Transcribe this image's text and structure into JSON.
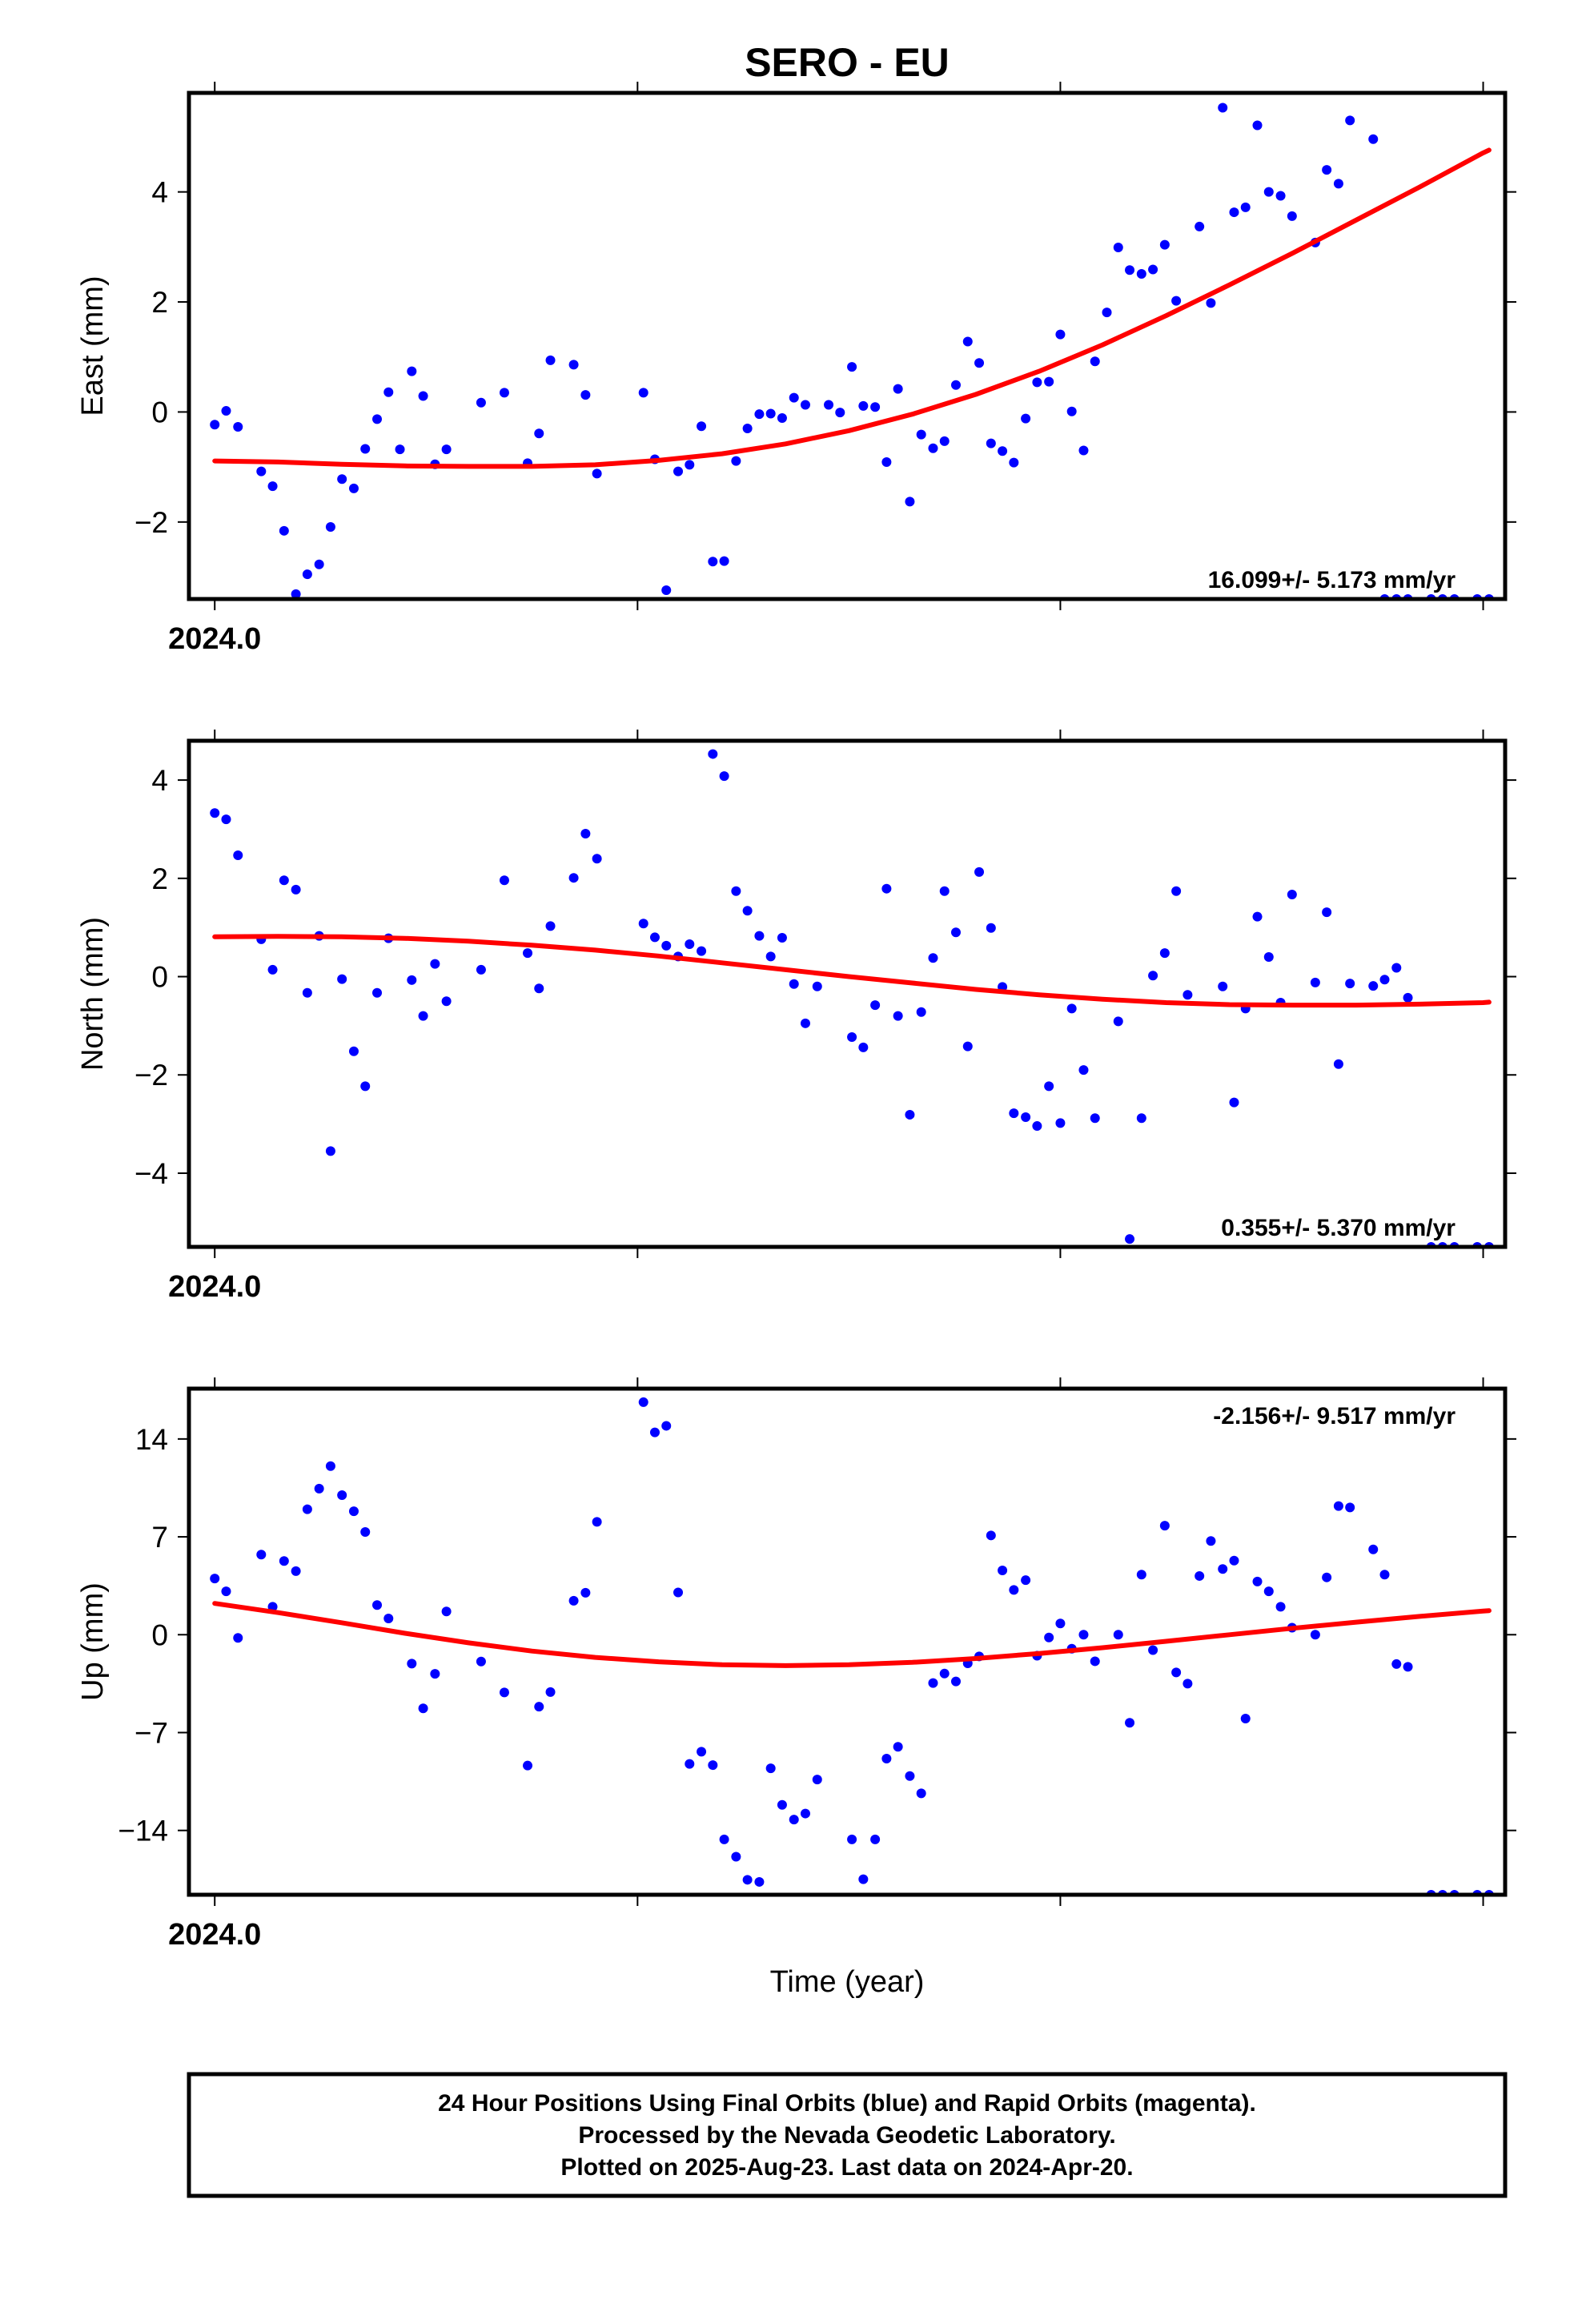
{
  "title": "SERO - EU",
  "xlabel": "Time (year)",
  "year_label": "2024.0",
  "footer": {
    "line1": "24 Hour Positions Using Final Orbits (blue) and Rapid Orbits (magenta).",
    "line2": "Processed by the Nevada Geodetic Laboratory.",
    "line3": "Plotted on 2025-Aug-23. Last data on 2024-Apr-20."
  },
  "colors": {
    "points": "#0000ff",
    "fit": "#ff0000",
    "frame": "#000000"
  },
  "chart_data": [
    {
      "type": "scatter",
      "ylabel": "East (mm)",
      "rate_text": "16.099+/- 5.173 mm/yr",
      "rate_position": "bottom-right",
      "ylim": [
        -3.4,
        5.8
      ],
      "yticks": [
        -2,
        0,
        2,
        4
      ],
      "ytick_labels": [
        "−2",
        "0",
        "2",
        "4"
      ],
      "xlim": [
        -0.0061,
        0.3052
      ],
      "xticks": [
        0.0,
        0.1,
        0.2,
        0.3
      ],
      "xtick_labels": [
        "2024.0"
      ],
      "x": [
        0.0,
        0.0027,
        0.0055,
        0.011,
        0.0137,
        0.0164,
        0.0192,
        0.0219,
        0.0247,
        0.0274,
        0.0301,
        0.0329,
        0.0356,
        0.0384,
        0.0411,
        0.0438,
        0.0466,
        0.0493,
        0.0521,
        0.0548,
        0.063,
        0.0685,
        0.074,
        0.0767,
        0.0794,
        0.0849,
        0.0877,
        0.0904,
        0.1014,
        0.1041,
        0.1068,
        0.1096,
        0.1123,
        0.1151,
        0.1178,
        0.1205,
        0.1233,
        0.126,
        0.1288,
        0.1315,
        0.1342,
        0.137,
        0.1397,
        0.1452,
        0.1479,
        0.1507,
        0.1534,
        0.1562,
        0.1589,
        0.1616,
        0.1644,
        0.1671,
        0.1699,
        0.1726,
        0.1753,
        0.1781,
        0.1808,
        0.1836,
        0.1863,
        0.189,
        0.1918,
        0.1945,
        0.1973,
        0.2,
        0.2027,
        0.2055,
        0.2082,
        0.211,
        0.2137,
        0.2164,
        0.2192,
        0.2219,
        0.2247,
        0.2274,
        0.2329,
        0.2356,
        0.2384,
        0.2411,
        0.2438,
        0.2466,
        0.2493,
        0.2521,
        0.2548,
        0.2603,
        0.263,
        0.2658,
        0.2685,
        0.274,
        0.2767,
        0.2795,
        0.2822,
        0.2877,
        0.2904,
        0.2932,
        0.2986,
        0.3014
      ],
      "y": [
        -0.23,
        0.02,
        -0.27,
        -1.08,
        -1.35,
        -2.16,
        -3.31,
        -2.95,
        -2.77,
        -2.09,
        -1.22,
        -1.39,
        -0.67,
        -0.13,
        0.36,
        -0.68,
        0.74,
        0.29,
        -0.95,
        -0.68,
        0.17,
        0.35,
        -0.93,
        -0.39,
        0.94,
        0.86,
        0.31,
        -1.12,
        0.35,
        -0.86,
        -3.24,
        -1.08,
        -0.96,
        -0.26,
        -2.72,
        -2.71,
        -0.89,
        -0.3,
        -0.04,
        -0.03,
        -0.11,
        0.26,
        0.13,
        0.13,
        -0.01,
        0.82,
        0.11,
        0.09,
        -0.91,
        0.42,
        -1.63,
        -0.41,
        -0.66,
        -0.53,
        0.49,
        1.28,
        0.89,
        -0.57,
        -0.71,
        -0.92,
        -0.12,
        0.54,
        0.55,
        1.41,
        0.01,
        -0.7,
        0.92,
        1.81,
        2.99,
        2.58,
        2.51,
        2.59,
        3.04,
        2.02,
        3.37,
        1.98,
        5.53,
        3.63,
        3.72,
        5.21,
        4.0,
        3.93,
        3.56,
        3.08,
        4.4,
        4.15,
        5.3,
        4.96,
        -3.4,
        -3.4,
        -3.4,
        -3.4,
        -3.4,
        -3.4,
        -3.4,
        -3.4
      ],
      "fit_x": [
        0.0,
        0.015,
        0.03,
        0.045,
        0.06,
        0.075,
        0.09,
        0.105,
        0.12,
        0.135,
        0.15,
        0.165,
        0.18,
        0.195,
        0.21,
        0.225,
        0.24,
        0.255,
        0.27,
        0.285,
        0.3,
        0.3014
      ],
      "fit_y": [
        -0.89,
        -0.91,
        -0.95,
        -0.98,
        -0.99,
        -0.99,
        -0.96,
        -0.88,
        -0.76,
        -0.58,
        -0.34,
        -0.04,
        0.32,
        0.74,
        1.22,
        1.75,
        2.31,
        2.89,
        3.49,
        4.09,
        4.71,
        4.76
      ]
    },
    {
      "type": "scatter",
      "ylabel": "North (mm)",
      "rate_text": "0.355+/- 5.370 mm/yr",
      "rate_position": "bottom-right",
      "ylim": [
        -5.5,
        4.8
      ],
      "yticks": [
        -4,
        -2,
        0,
        2,
        4
      ],
      "ytick_labels": [
        "−4",
        "−2",
        "0",
        "2",
        "4"
      ],
      "xlim": [
        -0.0061,
        0.3052
      ],
      "xticks": [
        0.0,
        0.1,
        0.2,
        0.3
      ],
      "xtick_labels": [
        "2024.0"
      ],
      "x": [
        0.0,
        0.0027,
        0.0055,
        0.011,
        0.0137,
        0.0164,
        0.0192,
        0.0219,
        0.0247,
        0.0274,
        0.0301,
        0.0329,
        0.0356,
        0.0384,
        0.0411,
        0.0466,
        0.0493,
        0.0521,
        0.0548,
        0.063,
        0.0685,
        0.074,
        0.0767,
        0.0794,
        0.0849,
        0.0877,
        0.0904,
        0.1014,
        0.1041,
        0.1068,
        0.1096,
        0.1123,
        0.1151,
        0.1178,
        0.1205,
        0.1233,
        0.126,
        0.1288,
        0.1315,
        0.1342,
        0.137,
        0.1397,
        0.1425,
        0.1507,
        0.1534,
        0.1562,
        0.1589,
        0.1616,
        0.1644,
        0.1671,
        0.1699,
        0.1726,
        0.1753,
        0.1781,
        0.1808,
        0.1836,
        0.1863,
        0.189,
        0.1918,
        0.1945,
        0.1973,
        0.2,
        0.2027,
        0.2055,
        0.2082,
        0.2137,
        0.2164,
        0.2192,
        0.2219,
        0.2247,
        0.2274,
        0.2301,
        0.2384,
        0.2411,
        0.2438,
        0.2466,
        0.2493,
        0.2521,
        0.2548,
        0.2603,
        0.263,
        0.2658,
        0.2685,
        0.274,
        0.2767,
        0.2795,
        0.2822,
        0.2877,
        0.2904,
        0.2932,
        0.2986,
        0.3014
      ],
      "y": [
        3.33,
        3.2,
        2.47,
        0.76,
        0.14,
        1.96,
        1.77,
        -0.33,
        0.83,
        -3.55,
        -0.05,
        -1.52,
        -2.23,
        -0.33,
        0.78,
        -0.07,
        -0.8,
        0.26,
        -0.5,
        0.14,
        1.96,
        0.48,
        -0.24,
        1.03,
        2.01,
        2.91,
        2.4,
        1.08,
        0.8,
        0.63,
        0.41,
        0.66,
        0.52,
        4.53,
        4.08,
        1.74,
        1.34,
        0.83,
        0.41,
        0.79,
        -0.15,
        -0.95,
        -0.2,
        -1.23,
        -1.44,
        -0.58,
        1.79,
        -0.8,
        -2.81,
        -0.72,
        0.38,
        1.74,
        0.9,
        -1.42,
        2.13,
        0.99,
        -0.21,
        -2.78,
        -2.86,
        -3.04,
        -2.23,
        -2.98,
        -0.65,
        -1.9,
        -2.88,
        -0.91,
        -5.34,
        -2.88,
        0.02,
        0.48,
        1.74,
        -0.37,
        -0.2,
        -2.56,
        -0.65,
        1.22,
        0.4,
        -0.53,
        1.67,
        -0.12,
        1.31,
        -1.78,
        -0.14,
        -0.19,
        -0.06,
        0.18,
        -0.43,
        -5.5,
        -5.5,
        -5.5,
        -5.5,
        -5.5
      ],
      "fit_x": [
        0.0,
        0.015,
        0.03,
        0.045,
        0.06,
        0.075,
        0.09,
        0.105,
        0.12,
        0.135,
        0.15,
        0.165,
        0.18,
        0.195,
        0.21,
        0.225,
        0.24,
        0.255,
        0.27,
        0.285,
        0.3,
        0.3014
      ],
      "fit_y": [
        0.81,
        0.82,
        0.81,
        0.78,
        0.72,
        0.64,
        0.54,
        0.42,
        0.28,
        0.14,
        0.0,
        -0.13,
        -0.26,
        -0.37,
        -0.46,
        -0.53,
        -0.57,
        -0.58,
        -0.58,
        -0.56,
        -0.53,
        -0.52
      ]
    },
    {
      "type": "scatter",
      "ylabel": "Up (mm)",
      "rate_text": "-2.156+/- 9.517 mm/yr",
      "rate_position": "top-right",
      "ylim": [
        -18.6,
        17.6
      ],
      "yticks": [
        -14,
        -7,
        0,
        7,
        14
      ],
      "ytick_labels": [
        "−14",
        "−7",
        "0",
        "7",
        "14"
      ],
      "xlim": [
        -0.0061,
        0.3052
      ],
      "xticks": [
        0.0,
        0.1,
        0.2,
        0.3
      ],
      "xtick_labels": [
        "2024.0"
      ],
      "x": [
        0.0,
        0.0027,
        0.0055,
        0.011,
        0.0137,
        0.0164,
        0.0192,
        0.0219,
        0.0247,
        0.0274,
        0.0301,
        0.0329,
        0.0356,
        0.0384,
        0.0411,
        0.0466,
        0.0493,
        0.0521,
        0.0548,
        0.063,
        0.0685,
        0.074,
        0.0767,
        0.0794,
        0.0849,
        0.0877,
        0.0904,
        0.1014,
        0.1041,
        0.1068,
        0.1096,
        0.1123,
        0.1151,
        0.1178,
        0.1205,
        0.1233,
        0.126,
        0.1288,
        0.1315,
        0.1342,
        0.137,
        0.1397,
        0.1425,
        0.1507,
        0.1534,
        0.1562,
        0.1589,
        0.1616,
        0.1644,
        0.1671,
        0.1699,
        0.1726,
        0.1753,
        0.1781,
        0.1808,
        0.1836,
        0.1863,
        0.189,
        0.1918,
        0.1945,
        0.1973,
        0.2,
        0.2027,
        0.2055,
        0.2082,
        0.2137,
        0.2164,
        0.2192,
        0.2219,
        0.2247,
        0.2274,
        0.2301,
        0.2329,
        0.2356,
        0.2384,
        0.2411,
        0.2438,
        0.2466,
        0.2493,
        0.2521,
        0.2548,
        0.2603,
        0.263,
        0.2658,
        0.2685,
        0.274,
        0.2767,
        0.2795,
        0.2822,
        0.2877,
        0.2904,
        0.2932,
        0.2986,
        0.3014
      ],
      "y": [
        4.02,
        3.1,
        -0.23,
        5.73,
        2.0,
        5.27,
        4.55,
        8.97,
        10.45,
        12.06,
        9.98,
        8.83,
        7.35,
        2.12,
        1.16,
        -2.07,
        -5.27,
        -2.8,
        1.66,
        -1.92,
        -4.13,
        -9.36,
        -5.15,
        -4.1,
        2.43,
        3.0,
        8.07,
        16.63,
        14.47,
        14.94,
        3.02,
        -9.24,
        -8.37,
        -9.33,
        -14.64,
        -15.88,
        -17.53,
        -17.68,
        -9.56,
        -12.17,
        -13.22,
        -12.79,
        -10.36,
        -14.64,
        -17.49,
        -14.64,
        -8.86,
        -8.02,
        -10.11,
        -11.35,
        -3.46,
        -2.78,
        -3.34,
        -2.05,
        -1.55,
        7.1,
        4.6,
        3.2,
        3.9,
        -1.5,
        -0.2,
        0.8,
        -1.0,
        0.0,
        -1.9,
        0.0,
        -6.3,
        4.3,
        -1.1,
        7.8,
        -2.7,
        -3.5,
        4.2,
        6.7,
        4.7,
        5.3,
        -6.0,
        3.8,
        3.1,
        2.0,
        0.5,
        0.0,
        4.1,
        9.2,
        9.1,
        6.1,
        4.3,
        -2.1,
        -2.3,
        -18.6,
        -18.6,
        -18.6,
        -18.6,
        -18.6
      ],
      "fit_x": [
        0.0,
        0.015,
        0.03,
        0.045,
        0.06,
        0.075,
        0.09,
        0.105,
        0.12,
        0.135,
        0.15,
        0.165,
        0.18,
        0.195,
        0.21,
        0.225,
        0.24,
        0.255,
        0.27,
        0.285,
        0.3,
        0.3014
      ],
      "fit_y": [
        2.24,
        1.58,
        0.86,
        0.1,
        -0.58,
        -1.17,
        -1.62,
        -1.94,
        -2.15,
        -2.21,
        -2.15,
        -1.98,
        -1.7,
        -1.34,
        -0.93,
        -0.47,
        0.0,
        0.46,
        0.9,
        1.31,
        1.69,
        1.72
      ]
    }
  ]
}
